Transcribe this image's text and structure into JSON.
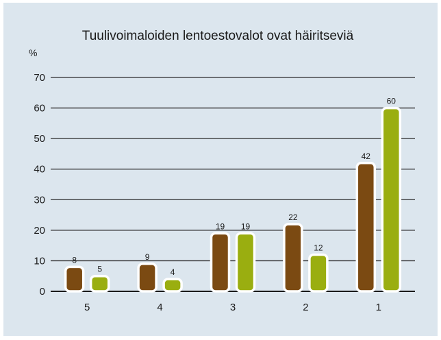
{
  "chart_data": {
    "type": "bar",
    "title": "Tuulivoimaloiden lentoestovalot ovat häiritseviä",
    "ylabel": "%",
    "xlabel": "",
    "categories": [
      "5",
      "4",
      "3",
      "2",
      "1"
    ],
    "ylim": [
      0,
      70
    ],
    "yticks": [
      "0",
      "10",
      "20",
      "30",
      "40",
      "50",
      "60",
      "70"
    ],
    "grid": true,
    "legend": "none",
    "series": [
      {
        "values": [
          8,
          9,
          19,
          22,
          42
        ],
        "color": "#7b4a12"
      },
      {
        "values": [
          5,
          4,
          19,
          12,
          60
        ],
        "color": "#9aae10"
      }
    ]
  }
}
